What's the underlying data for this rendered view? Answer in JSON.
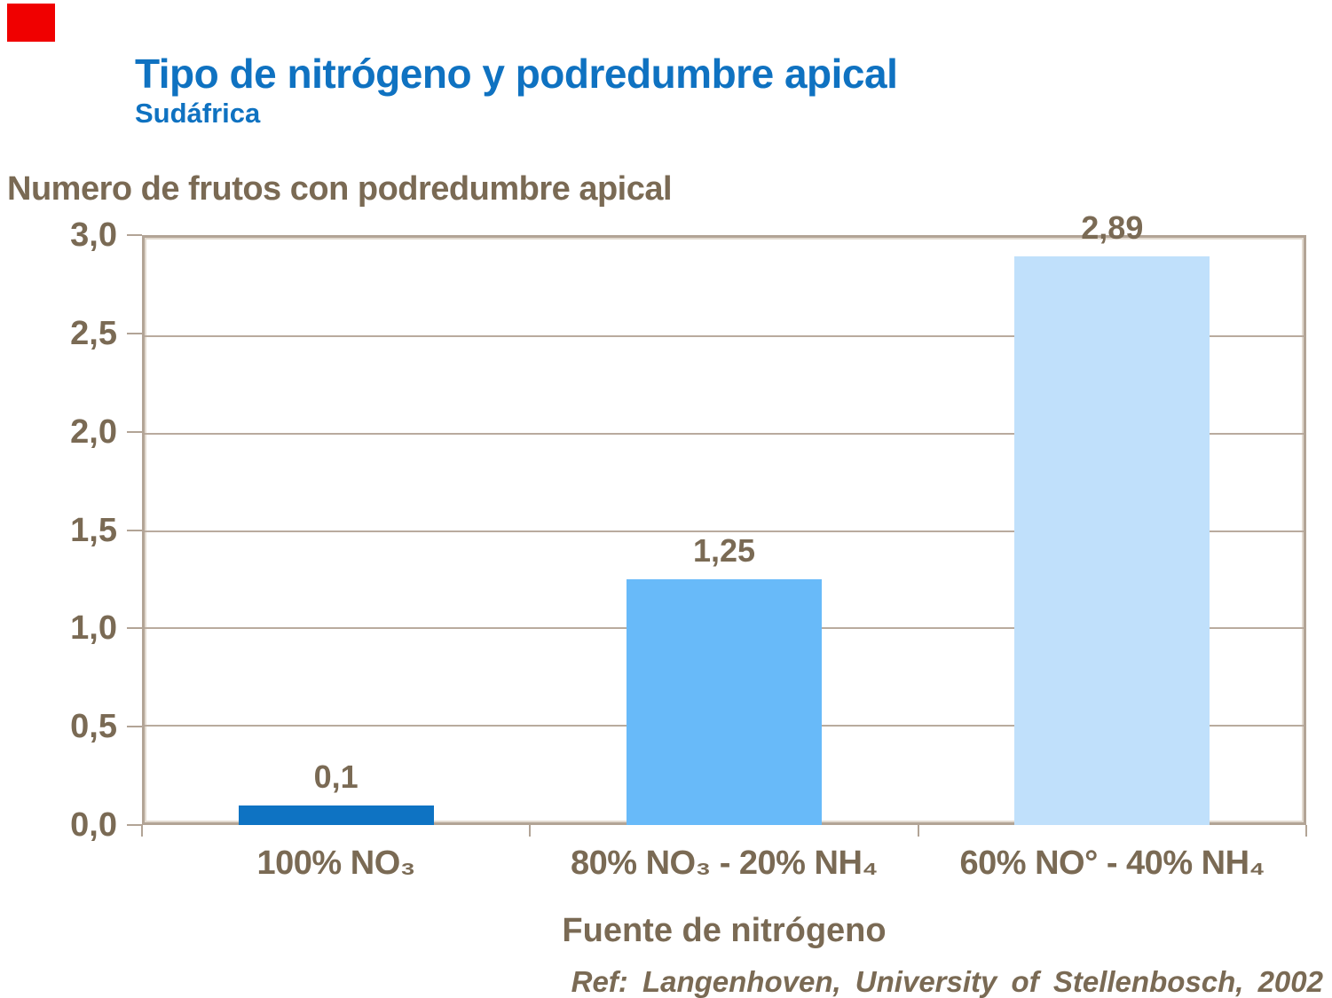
{
  "decor": {
    "corner_marker_color": "#f00000"
  },
  "header": {
    "title": "Tipo de nitrógeno y podredumbre apical",
    "subtitle": "Sudáfrica",
    "title_color": "#0f72c1"
  },
  "footer": {
    "reference": "Ref: Langenhoven, University of Stellenbosch, 2002"
  },
  "text_color": "#7a6a54",
  "axis_color": "#b2a496",
  "gridline_color": "#b9ab9e",
  "chart_data": {
    "type": "bar",
    "title": "Tipo de nitrógeno y podredumbre apical",
    "subtitle": "Sudáfrica",
    "categories": [
      "100% NO₃",
      "80% NO₃ - 20% NH₄",
      "60% NO° - 40% NH₄"
    ],
    "values": [
      0.1,
      1.25,
      2.89
    ],
    "value_labels": [
      "0,1",
      "1,25",
      "2,89"
    ],
    "bar_colors": [
      "#0e73c3",
      "#68baf9",
      "#c0e0fb"
    ],
    "xlabel": "Fuente de nitrógeno",
    "ylabel": "Numero de frutos con podredumbre apical",
    "ylim": [
      0,
      3
    ],
    "ytick_values": [
      0,
      0.5,
      1,
      1.5,
      2,
      2.5,
      3
    ],
    "ytick_labels": [
      "0,0",
      "0,5",
      "1,0",
      "1,5",
      "2,0",
      "2,5",
      "3,0"
    ],
    "grid": "horizontal",
    "legend": "none"
  }
}
